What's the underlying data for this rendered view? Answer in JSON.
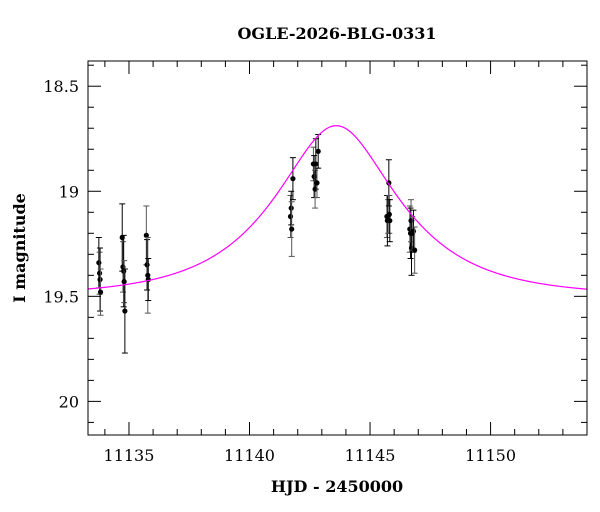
{
  "chart_data": {
    "type": "scatter",
    "title": "OGLE-2026-BLG-0331",
    "xlabel": "HJD - 2450000",
    "ylabel": "I magnitude",
    "xlim": [
      11133.3,
      11154.0
    ],
    "ylim": [
      20.16,
      18.38
    ],
    "y_inverted": true,
    "xticks": [
      11135,
      11140,
      11145,
      11150
    ],
    "xtick_labels": [
      "11135",
      "11140",
      "11145",
      "11150"
    ],
    "yticks": [
      18.5,
      19,
      19.5,
      20
    ],
    "ytick_labels": [
      "18.5",
      "19",
      "19.5",
      "20"
    ],
    "x_minor_step": 1,
    "y_minor_step": 0.1,
    "grid": false,
    "colors": {
      "model": "#ff00ff",
      "points": "#000000",
      "errorbars_dark": "#000000",
      "errorbars_light": "#555555"
    },
    "series": [
      {
        "kind": "points_with_errorbars",
        "points": [
          {
            "x": 11133.75,
            "y": 19.34,
            "err": 0.12
          },
          {
            "x": 11133.78,
            "y": 19.39,
            "err": 0.1
          },
          {
            "x": 11133.8,
            "y": 19.42,
            "err": 0.15
          },
          {
            "x": 11133.82,
            "y": 19.48,
            "err": 0.11
          },
          {
            "x": 11134.72,
            "y": 19.22,
            "err": 0.16
          },
          {
            "x": 11134.75,
            "y": 19.36,
            "err": 0.12
          },
          {
            "x": 11134.78,
            "y": 19.38,
            "err": 0.17
          },
          {
            "x": 11134.8,
            "y": 19.43,
            "err": 0.1
          },
          {
            "x": 11134.83,
            "y": 19.57,
            "err": 0.2
          },
          {
            "x": 11135.72,
            "y": 19.21,
            "err": 0.14
          },
          {
            "x": 11135.75,
            "y": 19.35,
            "err": 0.12
          },
          {
            "x": 11135.78,
            "y": 19.4,
            "err": 0.18
          },
          {
            "x": 11135.8,
            "y": 19.42,
            "err": 0.1
          },
          {
            "x": 11141.7,
            "y": 19.12,
            "err": 0.1
          },
          {
            "x": 11141.73,
            "y": 19.08,
            "err": 0.08
          },
          {
            "x": 11141.75,
            "y": 19.18,
            "err": 0.13
          },
          {
            "x": 11141.8,
            "y": 18.94,
            "err": 0.1
          },
          {
            "x": 11142.65,
            "y": 18.87,
            "err": 0.08
          },
          {
            "x": 11142.68,
            "y": 18.93,
            "err": 0.1
          },
          {
            "x": 11142.72,
            "y": 18.99,
            "err": 0.09
          },
          {
            "x": 11142.75,
            "y": 18.87,
            "err": 0.12
          },
          {
            "x": 11142.8,
            "y": 18.96,
            "err": 0.07
          },
          {
            "x": 11142.85,
            "y": 18.81,
            "err": 0.08
          },
          {
            "x": 11145.7,
            "y": 19.12,
            "err": 0.1
          },
          {
            "x": 11145.72,
            "y": 19.14,
            "err": 0.12
          },
          {
            "x": 11145.75,
            "y": 19.12,
            "err": 0.08
          },
          {
            "x": 11145.78,
            "y": 18.96,
            "err": 0.11
          },
          {
            "x": 11145.8,
            "y": 19.11,
            "err": 0.09
          },
          {
            "x": 11145.82,
            "y": 19.14,
            "err": 0.1
          },
          {
            "x": 11146.65,
            "y": 19.18,
            "err": 0.11
          },
          {
            "x": 11146.68,
            "y": 19.2,
            "err": 0.12
          },
          {
            "x": 11146.7,
            "y": 19.14,
            "err": 0.1
          },
          {
            "x": 11146.72,
            "y": 19.27,
            "err": 0.13
          },
          {
            "x": 11146.75,
            "y": 19.2,
            "err": 0.08
          },
          {
            "x": 11146.8,
            "y": 19.19,
            "err": 0.1
          },
          {
            "x": 11146.85,
            "y": 19.28,
            "err": 0.11
          }
        ]
      },
      {
        "kind": "model_curve",
        "model": "paczynski",
        "t0": 11143.6,
        "tE": 4.3,
        "u0": 0.52,
        "baseline": 19.5
      }
    ]
  }
}
